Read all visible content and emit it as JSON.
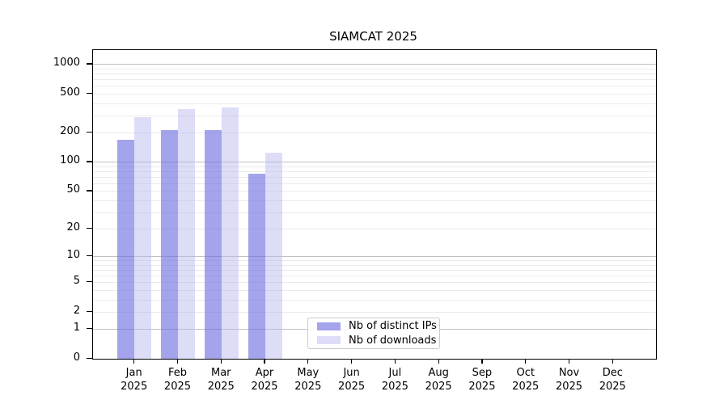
{
  "chart_data": {
    "type": "bar",
    "title": "SIAMCAT 2025",
    "categories": [
      "Jan",
      "Feb",
      "Mar",
      "Apr",
      "May",
      "Jun",
      "Jul",
      "Aug",
      "Sep",
      "Oct",
      "Nov",
      "Dec"
    ],
    "year": "2025",
    "series": [
      {
        "name": "Nb of distinct IPs",
        "color": "rgba(108,108,226,0.62)",
        "values": [
          170,
          210,
          210,
          76,
          null,
          null,
          null,
          null,
          null,
          null,
          null,
          null
        ]
      },
      {
        "name": "Nb of downloads",
        "color": "rgba(180,180,240,0.45)",
        "values": [
          290,
          350,
          360,
          124,
          null,
          null,
          null,
          null,
          null,
          null,
          null,
          null
        ]
      }
    ],
    "yscale": "log1p",
    "yticks": [
      0,
      1,
      2,
      5,
      10,
      20,
      50,
      100,
      200,
      500,
      1000
    ],
    "ylim": [
      0,
      1450
    ],
    "grid": "both",
    "legend_position": "lower center",
    "colors": {
      "major_grid": "#c2c2c2",
      "minor_grid": "#eaeaea",
      "axis": "#000000"
    }
  }
}
